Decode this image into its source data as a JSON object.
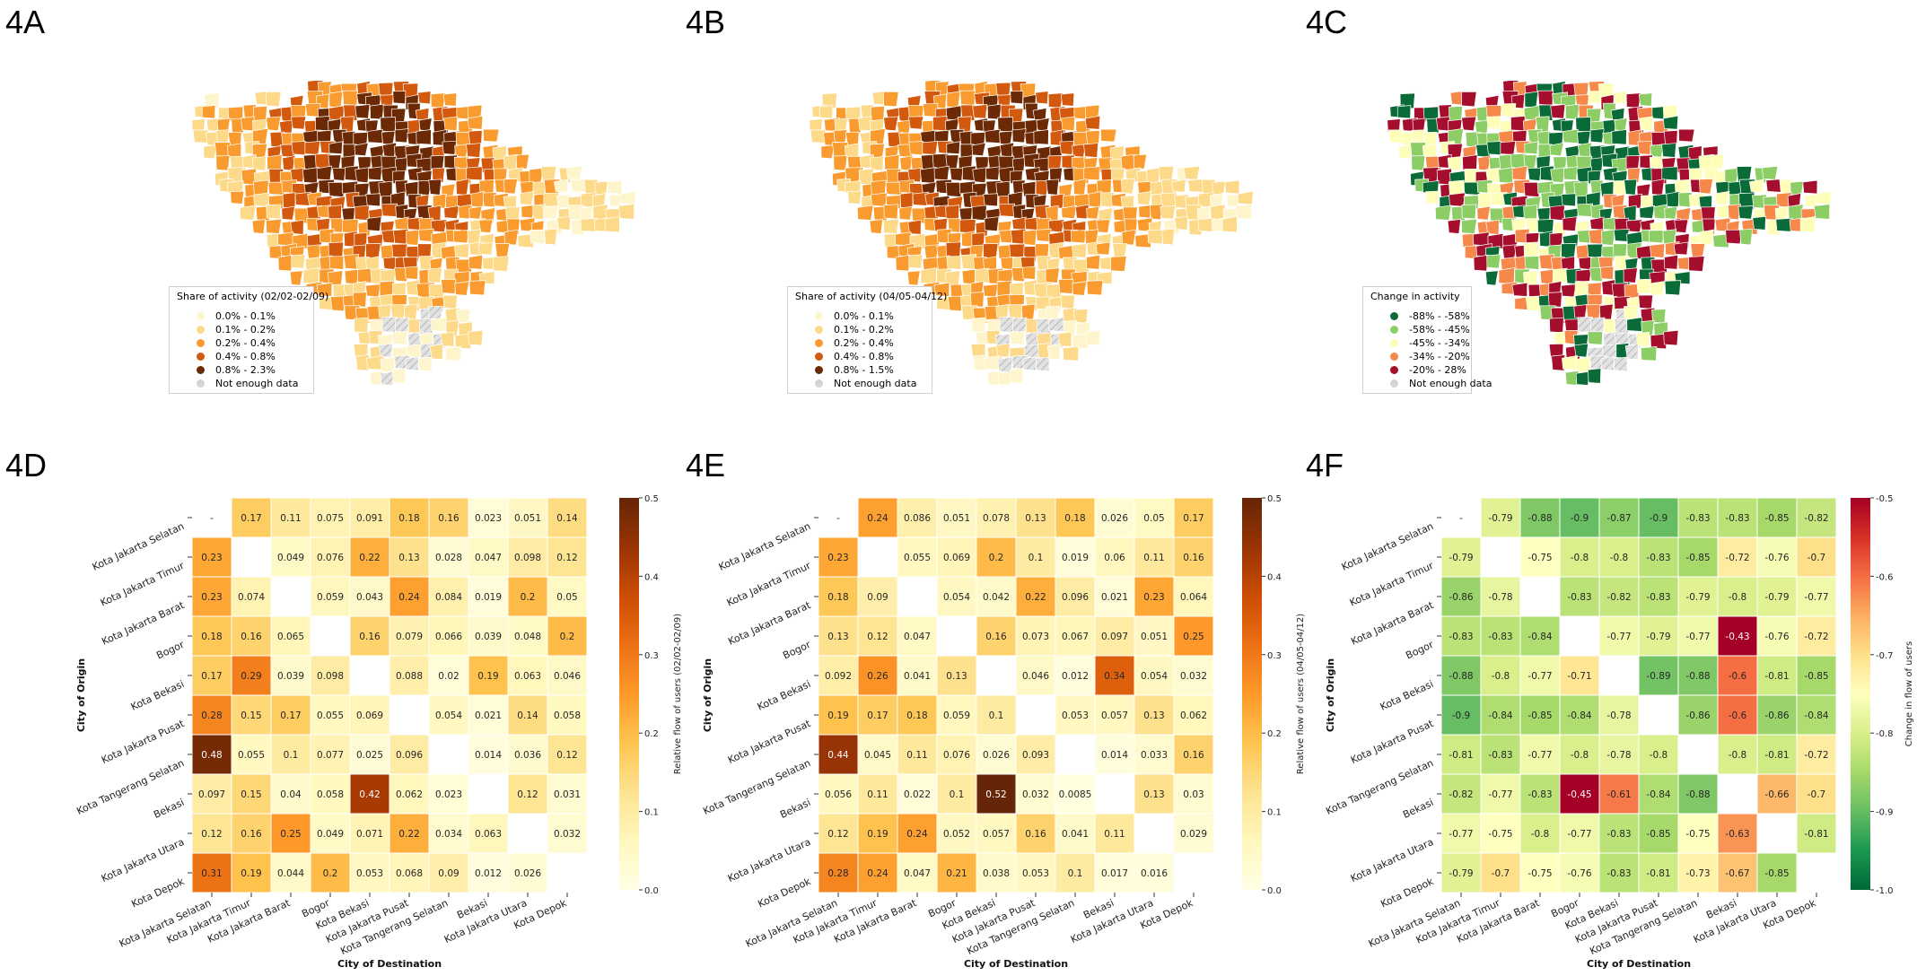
{
  "panels": [
    {
      "label": "4A"
    },
    {
      "label": "4B"
    },
    {
      "label": "4C"
    },
    {
      "label": "4D"
    },
    {
      "label": "4E"
    },
    {
      "label": "4F"
    }
  ],
  "maps": [
    {
      "legend_title": "Share of activity (02/02-02/09)",
      "entries": [
        {
          "label": "0.0%  -  0.1%",
          "color": "#fff5cc"
        },
        {
          "label": "0.1%  -  0.2%",
          "color": "#fdd98a"
        },
        {
          "label": "0.2%  -  0.4%",
          "color": "#f99b2e"
        },
        {
          "label": "0.4%  -  0.8%",
          "color": "#d2590d"
        },
        {
          "label": "0.8%  -  2.3%",
          "color": "#6b2a05"
        },
        {
          "label": "Not enough data",
          "color": "#d4d4d4"
        }
      ]
    },
    {
      "legend_title": "Share of activity (04/05-04/12)",
      "entries": [
        {
          "label": "0.0%  -  0.1%",
          "color": "#fff5cc"
        },
        {
          "label": "0.1%  -  0.2%",
          "color": "#fdd98a"
        },
        {
          "label": "0.2%  -  0.4%",
          "color": "#f99b2e"
        },
        {
          "label": "0.4%  -  0.8%",
          "color": "#d2590d"
        },
        {
          "label": "0.8%  -  1.5%",
          "color": "#6b2a05"
        },
        {
          "label": "Not enough data",
          "color": "#d4d4d4"
        }
      ]
    },
    {
      "legend_title": "Change in activity",
      "entries": [
        {
          "label": "-88%  -  -58%",
          "color": "#0b6b38"
        },
        {
          "label": "-58%  -  -45%",
          "color": "#8ccd66"
        },
        {
          "label": "-45%  -  -34%",
          "color": "#fefeb8"
        },
        {
          "label": "-34%  -  -20%",
          "color": "#f6884a"
        },
        {
          "label": "-20%  -  28%",
          "color": "#a50e2c"
        },
        {
          "label": "Not enough data",
          "color": "#d4d4d4"
        }
      ]
    }
  ],
  "chart_data": [
    {
      "type": "heatmap",
      "xlabel": "City of Destination",
      "ylabel": "City of Origin",
      "colorbar_label": "Relative flow of users (02/02-02/09)",
      "colormap": "YlOrBr",
      "vlim": [
        0,
        0.5
      ],
      "colorbar_ticks": [
        "0.0",
        "0.1",
        "0.2",
        "0.3",
        "0.4",
        "0.5"
      ],
      "rows": [
        "Kota Jakarta Selatan",
        "Kota Jakarta Timur",
        "Kota Jakarta Barat",
        "Bogor",
        "Kota Bekasi",
        "Kota Jakarta Pusat",
        "Kota Tangerang Selatan",
        "Bekasi",
        "Kota Jakarta Utara",
        "Kota Depok"
      ],
      "cols": [
        "Kota Jakarta Selatan",
        "Kota Jakarta Timur",
        "Kota Jakarta Barat",
        "Bogor",
        "Kota Bekasi",
        "Kota Jakarta Pusat",
        "Kota Tangerang Selatan",
        "Bekasi",
        "Kota Jakarta Utara",
        "Kota Depok"
      ],
      "cells": [
        [
          "-",
          "0.17",
          "0.11",
          "0.075",
          "0.091",
          "0.18",
          "0.16",
          "0.023",
          "0.051",
          "0.14"
        ],
        [
          "0.23",
          "",
          "0.049",
          "0.076",
          "0.22",
          "0.13",
          "0.028",
          "0.047",
          "0.098",
          "0.12"
        ],
        [
          "0.23",
          "0.074",
          "",
          "0.059",
          "0.043",
          "0.24",
          "0.084",
          "0.019",
          "0.2",
          "0.05"
        ],
        [
          "0.18",
          "0.16",
          "0.065",
          "",
          "0.16",
          "0.079",
          "0.066",
          "0.039",
          "0.048",
          "0.2"
        ],
        [
          "0.17",
          "0.29",
          "0.039",
          "0.098",
          "",
          "0.088",
          "0.02",
          "0.19",
          "0.063",
          "0.046"
        ],
        [
          "0.28",
          "0.15",
          "0.17",
          "0.055",
          "0.069",
          "",
          "0.054",
          "0.021",
          "0.14",
          "0.058"
        ],
        [
          "0.48",
          "0.055",
          "0.1",
          "0.077",
          "0.025",
          "0.096",
          "",
          "0.014",
          "0.036",
          "0.12"
        ],
        [
          "0.097",
          "0.15",
          "0.04",
          "0.058",
          "0.42",
          "0.062",
          "0.023",
          "",
          "0.12",
          "0.031"
        ],
        [
          "0.12",
          "0.16",
          "0.25",
          "0.049",
          "0.071",
          "0.22",
          "0.034",
          "0.063",
          "",
          "0.032"
        ],
        [
          "0.31",
          "0.19",
          "0.044",
          "0.2",
          "0.053",
          "0.068",
          "0.09",
          "0.012",
          "0.026",
          ""
        ]
      ]
    },
    {
      "type": "heatmap",
      "xlabel": "City of Destination",
      "ylabel": "City of Origin",
      "colorbar_label": "Relative flow of users (04/05-04/12)",
      "colormap": "YlOrBr",
      "vlim": [
        0,
        0.5
      ],
      "colorbar_ticks": [
        "0.0",
        "0.1",
        "0.2",
        "0.3",
        "0.4",
        "0.5"
      ],
      "rows": [
        "Kota Jakarta Selatan",
        "Kota Jakarta Timur",
        "Kota Jakarta Barat",
        "Bogor",
        "Kota Bekasi",
        "Kota Jakarta Pusat",
        "Kota Tangerang Selatan",
        "Bekasi",
        "Kota Jakarta Utara",
        "Kota Depok"
      ],
      "cols": [
        "Kota Jakarta Selatan",
        "Kota Jakarta Timur",
        "Kota Jakarta Barat",
        "Bogor",
        "Kota Bekasi",
        "Kota Jakarta Pusat",
        "Kota Tangerang Selatan",
        "Bekasi",
        "Kota Jakarta Utara",
        "Kota Depok"
      ],
      "cells": [
        [
          "-",
          "0.24",
          "0.086",
          "0.051",
          "0.078",
          "0.13",
          "0.18",
          "0.026",
          "0.05",
          "0.17"
        ],
        [
          "0.23",
          "",
          "0.055",
          "0.069",
          "0.2",
          "0.1",
          "0.019",
          "0.06",
          "0.11",
          "0.16"
        ],
        [
          "0.18",
          "0.09",
          "",
          "0.054",
          "0.042",
          "0.22",
          "0.096",
          "0.021",
          "0.23",
          "0.064"
        ],
        [
          "0.13",
          "0.12",
          "0.047",
          "",
          "0.16",
          "0.073",
          "0.067",
          "0.097",
          "0.051",
          "0.25"
        ],
        [
          "0.092",
          "0.26",
          "0.041",
          "0.13",
          "",
          "0.046",
          "0.012",
          "0.34",
          "0.054",
          "0.032"
        ],
        [
          "0.19",
          "0.17",
          "0.18",
          "0.059",
          "0.1",
          "",
          "0.053",
          "0.057",
          "0.13",
          "0.062"
        ],
        [
          "0.44",
          "0.045",
          "0.11",
          "0.076",
          "0.026",
          "0.093",
          "",
          "0.014",
          "0.033",
          "0.16"
        ],
        [
          "0.056",
          "0.11",
          "0.022",
          "0.1",
          "0.52",
          "0.032",
          "0.0085",
          "",
          "0.13",
          "0.03"
        ],
        [
          "0.12",
          "0.19",
          "0.24",
          "0.052",
          "0.057",
          "0.16",
          "0.041",
          "0.11",
          "",
          "0.029"
        ],
        [
          "0.28",
          "0.24",
          "0.047",
          "0.21",
          "0.038",
          "0.053",
          "0.1",
          "0.017",
          "0.016",
          ""
        ]
      ]
    },
    {
      "type": "heatmap",
      "xlabel": "City of Destination",
      "ylabel": "City of Origin",
      "colorbar_label": "Change in flow of users",
      "colormap": "RdYlGn_r",
      "vlim": [
        -1.0,
        -0.5
      ],
      "colorbar_ticks": [
        "-1.0",
        "-0.9",
        "-0.8",
        "-0.7",
        "-0.6",
        "-0.5"
      ],
      "rows": [
        "Kota Jakarta Selatan",
        "Kota Jakarta Timur",
        "Kota Jakarta Barat",
        "Bogor",
        "Kota Bekasi",
        "Kota Jakarta Pusat",
        "Kota Tangerang Selatan",
        "Bekasi",
        "Kota Jakarta Utara",
        "Kota Depok"
      ],
      "cols": [
        "Kota Jakarta Selatan",
        "Kota Jakarta Timur",
        "Kota Jakarta Barat",
        "Bogor",
        "Kota Bekasi",
        "Kota Jakarta Pusat",
        "Kota Tangerang Selatan",
        "Bekasi",
        "Kota Jakarta Utara",
        "Kota Depok"
      ],
      "cells": [
        [
          "-",
          "-0.79",
          "-0.88",
          "-0.9",
          "-0.87",
          "-0.9",
          "-0.83",
          "-0.83",
          "-0.85",
          "-0.82"
        ],
        [
          "-0.79",
          "",
          "-0.75",
          "-0.8",
          "-0.8",
          "-0.83",
          "-0.85",
          "-0.72",
          "-0.76",
          "-0.7"
        ],
        [
          "-0.86",
          "-0.78",
          "",
          "-0.83",
          "-0.82",
          "-0.83",
          "-0.79",
          "-0.8",
          "-0.79",
          "-0.77"
        ],
        [
          "-0.83",
          "-0.83",
          "-0.84",
          "",
          "-0.77",
          "-0.79",
          "-0.77",
          "-0.43",
          "-0.76",
          "-0.72"
        ],
        [
          "-0.88",
          "-0.8",
          "-0.77",
          "-0.71",
          "",
          "-0.89",
          "-0.88",
          "-0.6",
          "-0.81",
          "-0.85"
        ],
        [
          "-0.9",
          "-0.84",
          "-0.85",
          "-0.84",
          "-0.78",
          "",
          "-0.86",
          "-0.6",
          "-0.86",
          "-0.84"
        ],
        [
          "-0.81",
          "-0.83",
          "-0.77",
          "-0.8",
          "-0.78",
          "-0.8",
          "",
          "-0.8",
          "-0.81",
          "-0.72"
        ],
        [
          "-0.82",
          "-0.77",
          "-0.83",
          "-0.45",
          "-0.61",
          "-0.84",
          "-0.88",
          "",
          "-0.66",
          "-0.7"
        ],
        [
          "-0.77",
          "-0.75",
          "-0.8",
          "-0.77",
          "-0.83",
          "-0.85",
          "-0.75",
          "-0.63",
          "",
          "-0.81"
        ],
        [
          "-0.79",
          "-0.7",
          "-0.75",
          "-0.76",
          "-0.83",
          "-0.81",
          "-0.73",
          "-0.67",
          "-0.85",
          ""
        ]
      ]
    }
  ]
}
